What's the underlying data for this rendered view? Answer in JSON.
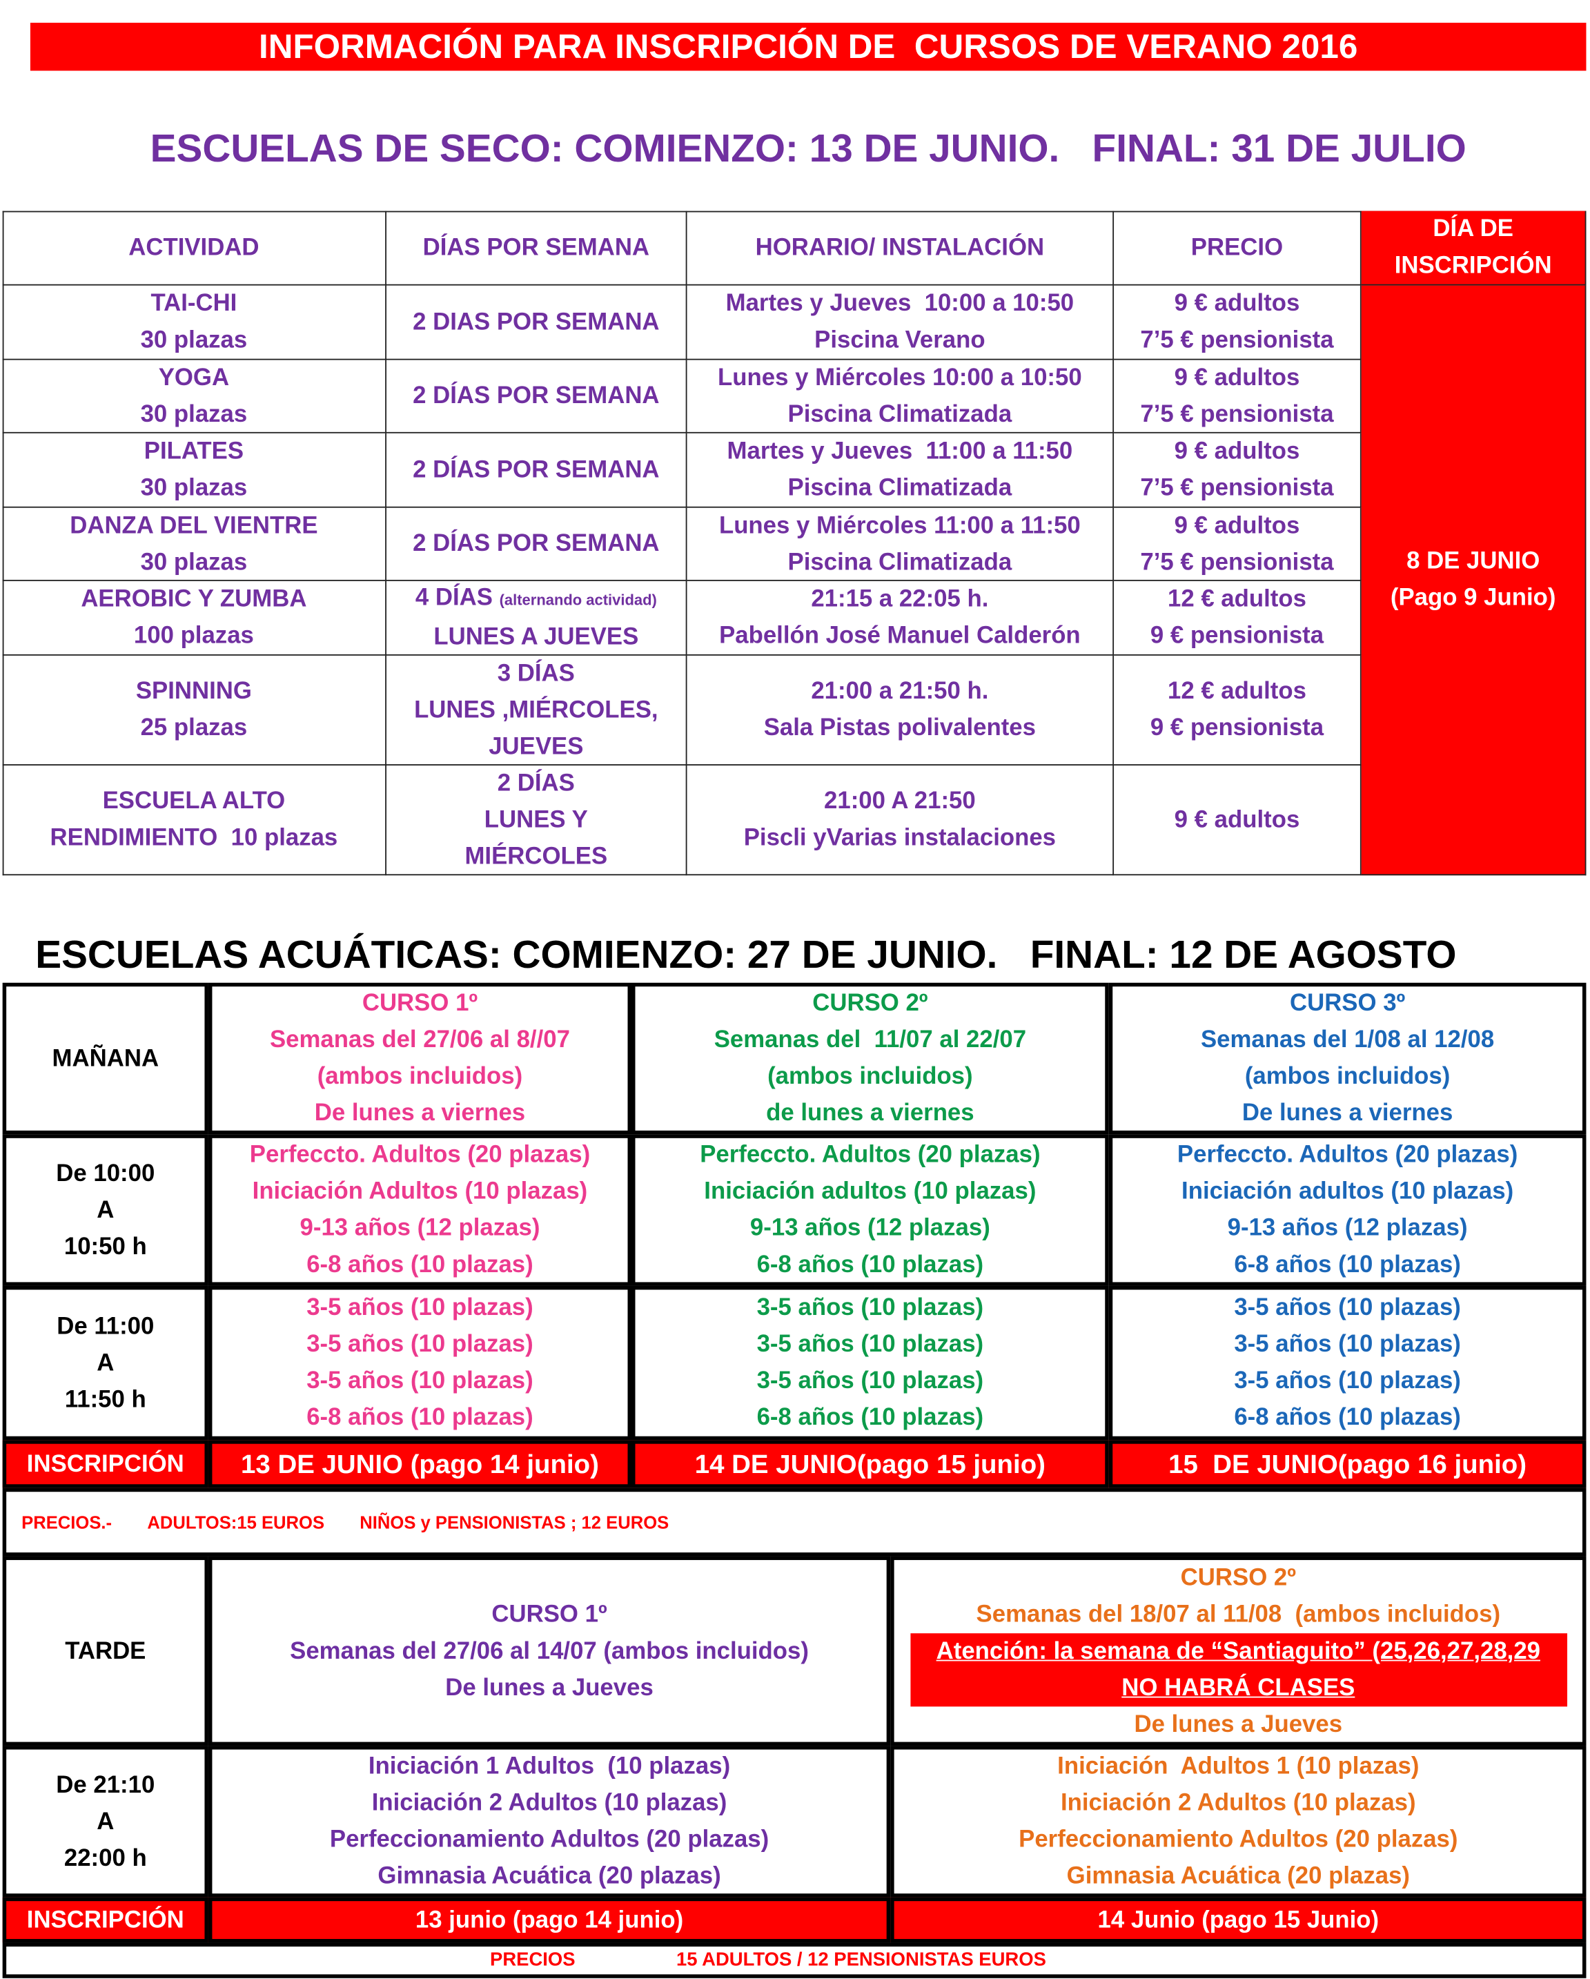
{
  "header": {
    "title": "INFORMACIÓN PARA INSCRIPCIÓN DE  CURSOS DE VERANO 2016"
  },
  "dry_schools": {
    "title": "ESCUELAS DE SECO: COMIENZO: 13 DE JUNIO.   FINAL: 31 DE JULIO",
    "columns": [
      [
        "ACTIVIDAD"
      ],
      [
        "DÍAS POR SEMANA"
      ],
      [
        "HORARIO/ INSTALACIÓN"
      ],
      [
        "PRECIO"
      ],
      [
        "DÍA DE",
        "INSCRIPCIÓN"
      ]
    ],
    "rows": [
      {
        "activity": [
          "TAI-CHI",
          "30 plazas"
        ],
        "days": [
          "2 DIAS POR SEMANA"
        ],
        "schedule": [
          "Martes y Jueves  10:00 a 10:50",
          "Piscina Verano"
        ],
        "price": [
          "9 € adultos",
          "7’5 € pensionista"
        ]
      },
      {
        "activity": [
          "YOGA",
          "30 plazas"
        ],
        "days": [
          "2 DÍAS POR SEMANA"
        ],
        "schedule": [
          "Lunes y Miércoles 10:00 a 10:50",
          "Piscina Climatizada"
        ],
        "price": [
          "9 € adultos",
          "7’5 € pensionista"
        ]
      },
      {
        "activity": [
          "PILATES",
          "30 plazas"
        ],
        "days": [
          "2 DÍAS POR SEMANA"
        ],
        "schedule": [
          "Martes y Jueves  11:00 a 11:50",
          "Piscina Climatizada"
        ],
        "price": [
          "9 € adultos",
          "7’5 € pensionista"
        ]
      },
      {
        "activity": [
          "DANZA DEL VIENTRE",
          "30 plazas"
        ],
        "days": [
          "2 DÍAS POR SEMANA"
        ],
        "schedule": [
          "Lunes y Miércoles 11:00 a 11:50",
          "Piscina Climatizada"
        ],
        "price": [
          "9 € adultos",
          "7’5 € pensionista"
        ]
      },
      {
        "activity": [
          "AEROBIC Y ZUMBA",
          "100 plazas"
        ],
        "days": [
          "4 DÍAS",
          "LUNES A JUEVES"
        ],
        "days_note": "(alternando actividad)",
        "schedule": [
          "21:15 a 22:05 h.",
          "Pabellón José Manuel Calderón"
        ],
        "price": [
          "12 € adultos",
          "9 € pensionista"
        ]
      },
      {
        "activity": [
          "SPINNING",
          "25 plazas"
        ],
        "days": [
          "3 DÍAS",
          "LUNES ,MIÉRCOLES,",
          "JUEVES"
        ],
        "schedule": [
          "21:00 a 21:50 h.",
          "Sala Pistas polivalentes"
        ],
        "price": [
          "12 € adultos",
          "9 € pensionista"
        ]
      },
      {
        "activity": [
          "ESCUELA ALTO",
          "RENDIMIENTO  10 plazas"
        ],
        "days": [
          "2 DÍAS",
          "LUNES Y",
          "MIÉRCOLES"
        ],
        "schedule": [
          "21:00 A 21:50",
          "Piscli yVarias instalaciones"
        ],
        "price": [
          "9 € adultos"
        ]
      }
    ],
    "registration_day": [
      "8 DE JUNIO",
      "(Pago 9 Junio)"
    ]
  },
  "aquatic_schools": {
    "title": "ESCUELAS ACUÁTICAS: COMIENZO: 27 DE JUNIO.   FINAL: 12 DE AGOSTO",
    "morning": {
      "label": "MAÑANA",
      "courses": [
        {
          "title": "CURSO 1º",
          "lines": [
            "Semanas del 27/06 al 8//07",
            "(ambos incluidos)",
            "De lunes a viernes"
          ]
        },
        {
          "title": "CURSO 2º",
          "lines": [
            "Semanas del  11/07 al 22/07",
            "(ambos incluidos)",
            "de lunes a viernes"
          ]
        },
        {
          "title": "CURSO 3º",
          "lines": [
            "Semanas del 1/08 al 12/08",
            "(ambos incluidos)",
            "De lunes a viernes"
          ]
        }
      ],
      "slots": [
        {
          "time": [
            "De 10:00",
            "A",
            "10:50 h"
          ],
          "groups": [
            [
              "Perfeccto. Adultos (20 plazas)",
              "Iniciación Adultos (10 plazas)",
              "9-13 años (12 plazas)",
              "6-8 años (10 plazas)"
            ],
            [
              "Perfeccto. Adultos (20 plazas)",
              "Iniciación adultos (10 plazas)",
              "9-13 años (12 plazas)",
              "6-8 años (10 plazas)"
            ],
            [
              "Perfeccto. Adultos (20 plazas)",
              "Iniciación adultos (10 plazas)",
              "9-13 años (12 plazas)",
              "6-8 años (10 plazas)"
            ]
          ]
        },
        {
          "time": [
            "De 11:00",
            "A",
            "11:50 h"
          ],
          "groups": [
            [
              "3-5 años (10 plazas)",
              "3-5 años (10 plazas)",
              "3-5 años (10 plazas)",
              "6-8 años (10 plazas)"
            ],
            [
              "3-5 años (10 plazas)",
              "3-5 años (10 plazas)",
              "3-5 años (10 plazas)",
              "6-8 años (10 plazas)"
            ],
            [
              "3-5 años (10 plazas)",
              "3-5 años (10 plazas)",
              "3-5 años (10 plazas)",
              "6-8 años (10 plazas)"
            ]
          ]
        }
      ],
      "registration_label": "INSCRIPCIÓN",
      "registration": [
        "13 DE JUNIO (pago 14 junio)",
        "14 DE JUNIO(pago 15 junio)",
        "15  DE JUNIO(pago 16 junio)"
      ],
      "prices": [
        "PRECIOS.-",
        "ADULTOS:15 EUROS",
        "NIÑOS y PENSIONISTAS ; 12 EUROS"
      ]
    },
    "afternoon": {
      "label": "TARDE",
      "courses": [
        {
          "title": "CURSO 1º",
          "lines": [
            "Semanas del 27/06 al 14/07 (ambos incluidos)",
            "De lunes a Jueves"
          ]
        },
        {
          "title": "CURSO 2º",
          "lines": [
            "Semanas del 18/07 al 11/08  (ambos incluidos)"
          ],
          "notice": [
            "Atención: la semana de “Santiaguito” (25,26,27,28,29",
            "NO HABRÁ CLASES"
          ],
          "after": [
            "De lunes a Jueves"
          ]
        }
      ],
      "slots": [
        {
          "time": [
            "De 21:10",
            "A",
            "22:00 h"
          ],
          "groups": [
            [
              "Iniciación 1 Adultos  (10 plazas)",
              "Iniciación 2 Adultos (10 plazas)",
              "Perfeccionamiento Adultos (20 plazas)",
              "Gimnasia Acuática (20 plazas)"
            ],
            [
              "Iniciación  Adultos 1 (10 plazas)",
              "Iniciación 2 Adultos (10 plazas)",
              "Perfeccionamiento Adultos (20 plazas)",
              "Gimnasia Acuática (20 plazas)"
            ]
          ]
        }
      ],
      "registration_label": "INSCRIPCIÓN",
      "registration": [
        "13 junio (pago 14 junio)",
        "14 Junio (pago 15 Junio)"
      ],
      "prices": [
        "PRECIOS",
        "15 ADULTOS / 12 PENSIONISTAS EUROS"
      ]
    }
  }
}
